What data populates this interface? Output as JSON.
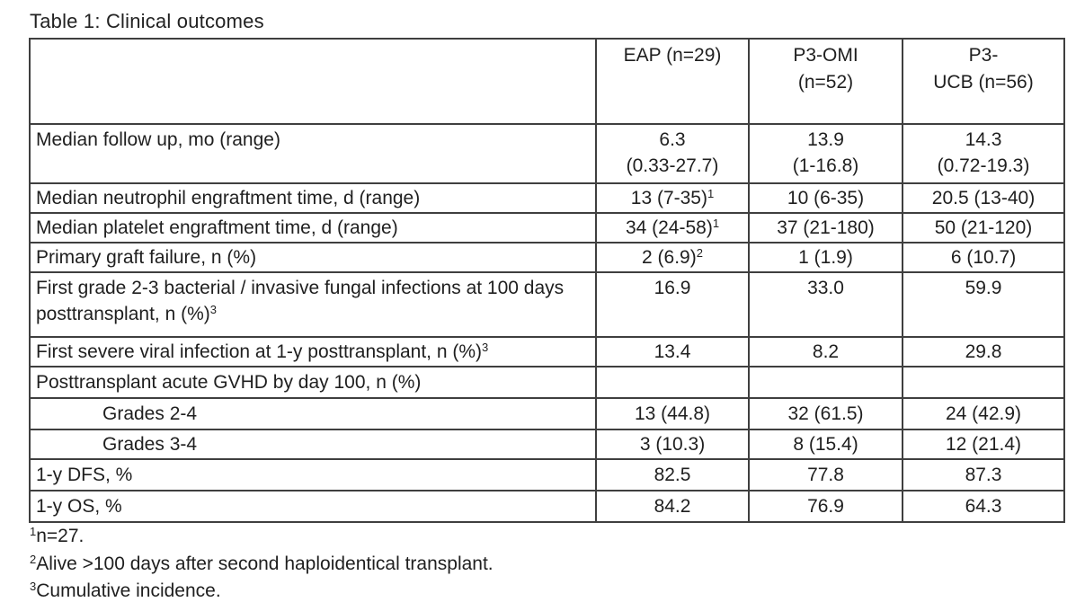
{
  "page": {
    "title": "Table 1: Clinical outcomes"
  },
  "table": {
    "headers": [
      {
        "line1": "",
        "line2": ""
      },
      {
        "line1": "EAP (n=29)",
        "line2": ""
      },
      {
        "line1": "P3-OMI",
        "line2": "(n=52)"
      },
      {
        "line1": "P3-",
        "line2": "UCB (n=56)"
      }
    ],
    "rows": [
      {
        "label": "Median follow up, mo (range)",
        "cells": [
          {
            "line1": "6.3",
            "line2": "(0.33-27.7)"
          },
          {
            "line1": "13.9",
            "line2": "(1-16.8)"
          },
          {
            "line1": "14.3",
            "line2": "(0.72-19.3)"
          }
        ]
      },
      {
        "label": "Median neutrophil engraftment time, d (range)",
        "cells": [
          {
            "line1": "13 (7-35)",
            "sup": "1"
          },
          {
            "line1": "10 (6-35)"
          },
          {
            "line1": "20.5 (13-40)"
          }
        ]
      },
      {
        "label": "Median platelet engraftment time, d (range)",
        "cells": [
          {
            "line1": "34 (24-58)",
            "sup": "1"
          },
          {
            "line1": "37 (21-180)"
          },
          {
            "line1": "50 (21-120)"
          }
        ]
      },
      {
        "label": "Primary graft failure, n (%)",
        "cells": [
          {
            "line1": "2 (6.9)",
            "sup": "2"
          },
          {
            "line1": "1 (1.9)"
          },
          {
            "line1": "6 (10.7)"
          }
        ]
      },
      {
        "label": "First grade 2-3 bacterial / invasive fungal infections at 100 days posttransplant, n (%)",
        "label_sup": "3",
        "cells": [
          {
            "line1": "16.9"
          },
          {
            "line1": "33.0"
          },
          {
            "line1": "59.9"
          }
        ]
      },
      {
        "label": "First severe viral infection at 1-y posttransplant, n (%)",
        "label_sup": "3",
        "cells": [
          {
            "line1": "13.4"
          },
          {
            "line1": "8.2"
          },
          {
            "line1": "29.8"
          }
        ]
      },
      {
        "label": "Posttransplant acute GVHD by day 100, n (%)",
        "cells": [
          {},
          {},
          {}
        ]
      },
      {
        "label": "Grades 2-4",
        "cells": [
          {
            "line1": "13 (44.8)"
          },
          {
            "line1": "32 (61.5)"
          },
          {
            "line1": "24 (42.9)"
          }
        ]
      },
      {
        "label": "Grades 3-4",
        "cells": [
          {
            "line1": "3 (10.3)"
          },
          {
            "line1": "8 (15.4)"
          },
          {
            "line1": "12 (21.4)"
          }
        ]
      },
      {
        "label": "1-y DFS, %",
        "cells": [
          {
            "line1": "82.5"
          },
          {
            "line1": "77.8"
          },
          {
            "line1": "87.3"
          }
        ]
      },
      {
        "label": "1-y OS, %",
        "cells": [
          {
            "line1": "84.2"
          },
          {
            "line1": "76.9"
          },
          {
            "line1": "64.3"
          }
        ]
      }
    ]
  },
  "footnotes": [
    {
      "sup": "1",
      "text": "n=27."
    },
    {
      "sup": "2",
      "text": "Alive >100 days after second haploidentical transplant."
    },
    {
      "sup": "3",
      "text": "Cumulative incidence."
    }
  ],
  "colors": {
    "text": "#1f1f1f",
    "border": "#3f3f3f",
    "background": "#ffffff"
  }
}
